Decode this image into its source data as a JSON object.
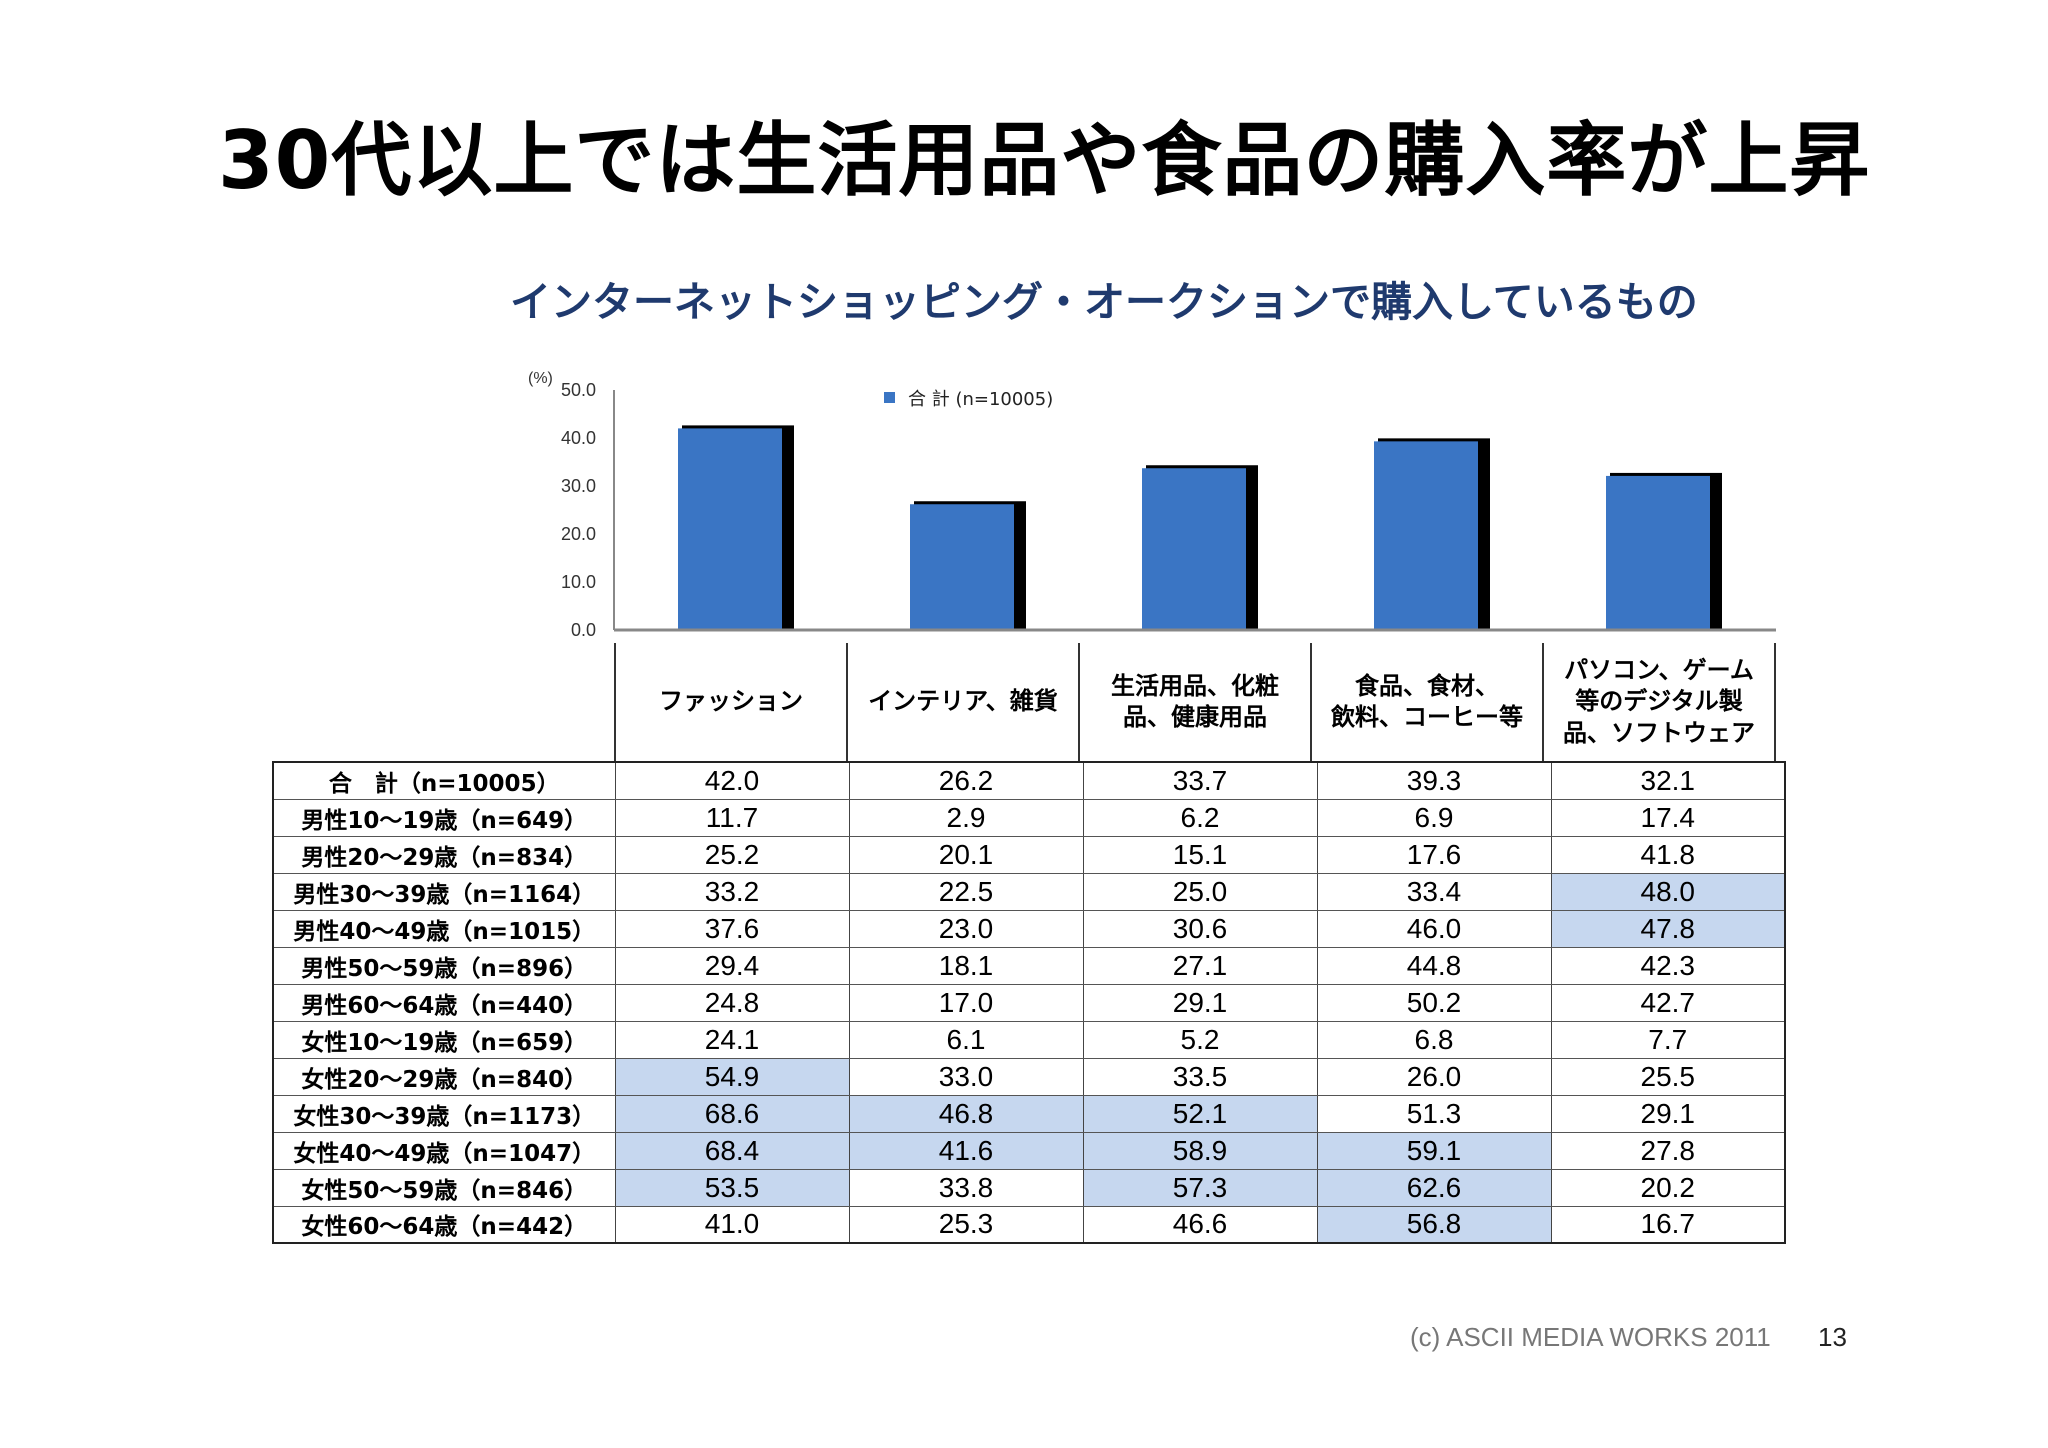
{
  "title": "30代以上では生活用品や食品の購入率が上昇",
  "chart_data": {
    "type": "bar",
    "title": "インターネットショッピング・オークションで購入しているもの",
    "ylabel": "(%)",
    "ylim": [
      0,
      50
    ],
    "yticks": [
      "50.0",
      "40.0",
      "30.0",
      "20.0",
      "10.0",
      "0.0"
    ],
    "categories": [
      "ファッション",
      "インテリア、雑貨",
      "生活用品、化粧\n品、健康用品",
      "食品、食材、\n飲料、コーヒー等",
      "パソコン、ゲーム\n等のデジタル製\n品、ソフトウェア"
    ],
    "series": [
      {
        "name": "合 計 (n=10005)",
        "values": [
          42.0,
          26.2,
          33.7,
          39.3,
          32.1
        ]
      }
    ],
    "legend": "top-center",
    "grid": false,
    "bar_color": "#3a75c4"
  },
  "table": {
    "rows": [
      {
        "label": "合　計（n=10005）",
        "values": [
          "42.0",
          "26.2",
          "33.7",
          "39.3",
          "32.1"
        ],
        "highlight": [
          false,
          false,
          false,
          false,
          false
        ]
      },
      {
        "label": "男性10～19歳（n=649）",
        "values": [
          "11.7",
          "2.9",
          "6.2",
          "6.9",
          "17.4"
        ],
        "highlight": [
          false,
          false,
          false,
          false,
          false
        ]
      },
      {
        "label": "男性20～29歳（n=834）",
        "values": [
          "25.2",
          "20.1",
          "15.1",
          "17.6",
          "41.8"
        ],
        "highlight": [
          false,
          false,
          false,
          false,
          false
        ]
      },
      {
        "label": "男性30～39歳（n=1164）",
        "values": [
          "33.2",
          "22.5",
          "25.0",
          "33.4",
          "48.0"
        ],
        "highlight": [
          false,
          false,
          false,
          false,
          true
        ]
      },
      {
        "label": "男性40～49歳（n=1015）",
        "values": [
          "37.6",
          "23.0",
          "30.6",
          "46.0",
          "47.8"
        ],
        "highlight": [
          false,
          false,
          false,
          false,
          true
        ]
      },
      {
        "label": "男性50～59歳（n=896）",
        "values": [
          "29.4",
          "18.1",
          "27.1",
          "44.8",
          "42.3"
        ],
        "highlight": [
          false,
          false,
          false,
          false,
          false
        ]
      },
      {
        "label": "男性60～64歳（n=440）",
        "values": [
          "24.8",
          "17.0",
          "29.1",
          "50.2",
          "42.7"
        ],
        "highlight": [
          false,
          false,
          false,
          false,
          false
        ]
      },
      {
        "label": "女性10～19歳（n=659）",
        "values": [
          "24.1",
          "6.1",
          "5.2",
          "6.8",
          "7.7"
        ],
        "highlight": [
          false,
          false,
          false,
          false,
          false
        ]
      },
      {
        "label": "女性20～29歳（n=840）",
        "values": [
          "54.9",
          "33.0",
          "33.5",
          "26.0",
          "25.5"
        ],
        "highlight": [
          true,
          false,
          false,
          false,
          false
        ]
      },
      {
        "label": "女性30～39歳（n=1173）",
        "values": [
          "68.6",
          "46.8",
          "52.1",
          "51.3",
          "29.1"
        ],
        "highlight": [
          true,
          true,
          true,
          false,
          false
        ]
      },
      {
        "label": "女性40～49歳（n=1047）",
        "values": [
          "68.4",
          "41.6",
          "58.9",
          "59.1",
          "27.8"
        ],
        "highlight": [
          true,
          true,
          true,
          true,
          false
        ]
      },
      {
        "label": "女性50～59歳（n=846）",
        "values": [
          "53.5",
          "33.8",
          "57.3",
          "62.6",
          "20.2"
        ],
        "highlight": [
          true,
          false,
          true,
          true,
          false
        ]
      },
      {
        "label": "女性60～64歳（n=442）",
        "values": [
          "41.0",
          "25.3",
          "46.6",
          "56.8",
          "16.7"
        ],
        "highlight": [
          false,
          false,
          false,
          true,
          false
        ]
      }
    ]
  },
  "footer": {
    "copyright": "(c) ASCII MEDIA WORKS 2011",
    "page": "13"
  }
}
